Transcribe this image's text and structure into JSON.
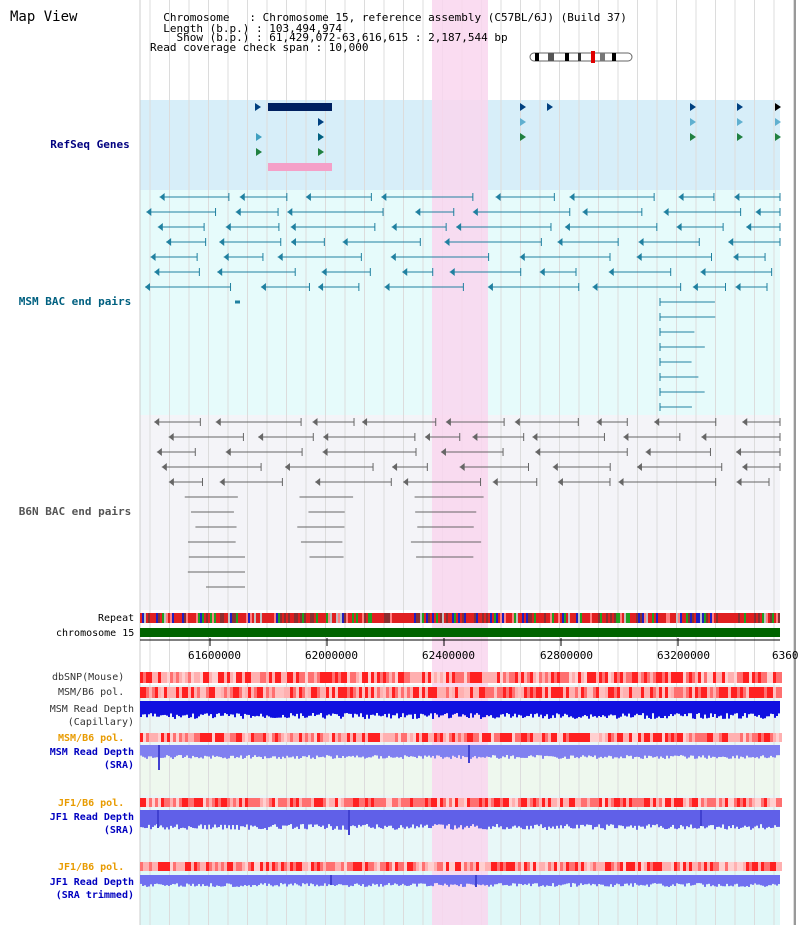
{
  "header": {
    "title": "Map View",
    "info_lines": [
      "  Chromosome   : Chromosome 15, reference assembly (C57BL/6J) (Build 37)",
      "  Length (b.p.) : 103,494,974",
      "    Show (b.p.) : 61,429,072-63,616,615 : 2,187,544 bp",
      "Read coverage check span : 10,000"
    ]
  },
  "tracks": {
    "refseq": {
      "label": "RefSeq Genes",
      "color": "#000080"
    },
    "msm_bac": {
      "label": "MSM BAC end pairs",
      "color": "#006080"
    },
    "b6n_bac": {
      "label": "B6N BAC end pairs",
      "color": "#555555"
    },
    "repeat": {
      "label": "Repeat"
    },
    "chromosome": {
      "label": "chromosome 15"
    },
    "dbsnp": {
      "label": "dbSNP(Mouse)"
    },
    "msm_b6_pol_1": {
      "label": "MSM/B6 pol."
    },
    "msm_rd_cap": {
      "label": "MSM Read Depth\n(Capillary)"
    },
    "msm_b6_pol_2": {
      "label": "MSM/B6 pol."
    },
    "msm_rd_sra": {
      "label": "MSM Read Depth\n(SRA)"
    },
    "jf1_b6_pol_1": {
      "label": "JF1/B6 pol."
    },
    "jf1_rd_sra": {
      "label": "JF1 Read Depth\n(SRA)"
    },
    "jf1_b6_pol_2": {
      "label": "JF1/B6 pol."
    },
    "jf1_rd_trim": {
      "label": "JF1 Read Depth\n(SRA trimmed)"
    }
  },
  "axis": {
    "ticks": [
      "61600000",
      "62000000",
      "62400000",
      "62800000",
      "63200000",
      "6360"
    ]
  },
  "colors": {
    "highlight": "#f9d6ef",
    "refseq_bg": "#d7eef9",
    "bac_bg": "#e6fbfb",
    "chrom_bar": "#006400",
    "pol_red": "#ff3030",
    "depth_blue": "#2020e0"
  }
}
